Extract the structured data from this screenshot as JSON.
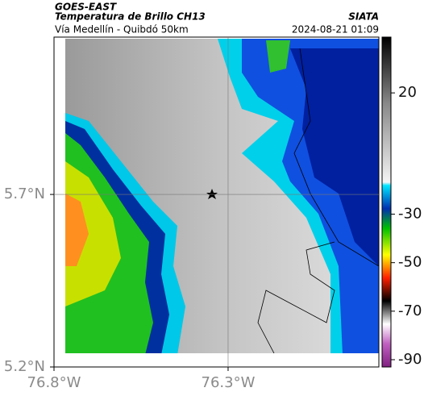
{
  "header": {
    "title": "GOES-EAST",
    "subtitle": "Temperatura de Brillo CH13",
    "route": "Vía Medellín - Quibdó 50km",
    "source": "SIATA",
    "timestamp": "2024-08-21 01:09"
  },
  "map": {
    "latlim": [
      5.2,
      6.156
    ],
    "lonlim": [
      -76.8,
      -75.867
    ],
    "lat_ticks": [
      {
        "value": 5.7,
        "label": "5.7°N"
      },
      {
        "value": 5.2,
        "label": "5.2°N"
      }
    ],
    "lon_ticks": [
      {
        "value": -76.8,
        "label": "76.8°W"
      },
      {
        "value": -76.3,
        "label": "76.3°W"
      }
    ],
    "grid": true
  },
  "colorbar": {
    "lim": [
      -93,
      43
    ],
    "ticks": [
      20,
      -30,
      -50,
      -70,
      -90
    ]
  }
}
